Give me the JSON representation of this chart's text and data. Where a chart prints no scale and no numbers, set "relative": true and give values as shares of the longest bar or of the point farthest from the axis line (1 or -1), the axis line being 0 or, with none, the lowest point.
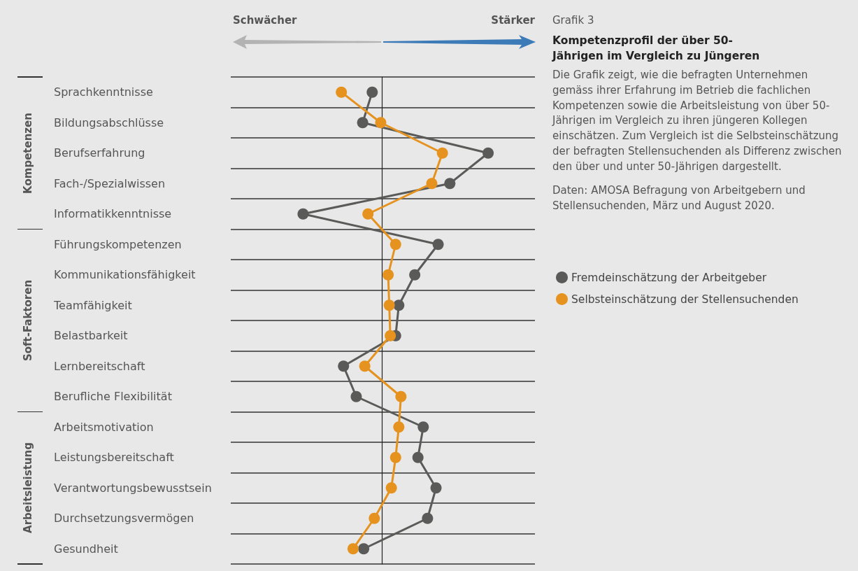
{
  "chart_data": {
    "type": "line",
    "orientation": "horizontal",
    "relative": true,
    "subtitle": "Grafik 3",
    "title": "Kompetenzprofil der über 50-Jährigen im Vergleich zu Jüngeren",
    "annotations": [
      "Schwächer",
      "Stärker",
      "Kompetenzen",
      "Soft-Faktoren",
      "Arbeitsleistung",
      "Die Grafik zeigt, wie die befragten Unternehmen gemäss ihrer Erfahrung im Betrieb die fachlichen Kompetenzen sowie die Arbeitsleistung von über 50-Jährigen im Vergleich zu ihren jüngeren Kollegen einschätzen. Zum Vergleich ist die Selbsteinschätzung der befragten Stellensuchenden als Differenz zwischen den über und unter 50-Jährigen dargestellt.",
      "Daten: AMOSA Befragung von Arbeitgebern und Stellensuchenden, März und August 2020."
    ],
    "categories": [
      "Sprachkenntnisse",
      "Bildungsabschlüsse",
      "Berufserfahrung",
      "Fach-/Spezialwissen",
      "Informatikkenntnisse",
      "Führungskompetenzen",
      "Kommunikationsfähigkeit",
      "Teamfähigkeit",
      "Belastbarkeit",
      "Lernbereitschaft",
      "Berufliche Flexibilität",
      "Arbeitsmotivation",
      "Leistungsbereitschaft",
      "Verantwortungsbewusstsein",
      "Durchsetzungsvermögen",
      "Gesundheit"
    ],
    "series": [
      {
        "name": "Fremdeinschätzung der Arbeitgeber",
        "color": "#5a5a58",
        "values": [
          -0.09,
          -0.18,
          1,
          0.64,
          -0.74,
          0.53,
          0.31,
          0.16,
          0.13,
          -0.36,
          -0.24,
          0.39,
          0.34,
          0.51,
          0.43,
          -0.17
        ]
      },
      {
        "name": "Selbsteinschätzung der Stellensuchenden",
        "color": "#e5921f",
        "values": [
          -0.38,
          -0.01,
          0.57,
          0.47,
          -0.13,
          0.13,
          0.06,
          0.07,
          0.08,
          -0.16,
          0.18,
          0.16,
          0.13,
          0.09,
          -0.07,
          -0.27
        ]
      }
    ],
    "grid": "y",
    "legend": "right",
    "marker": "circle",
    "line_style": "solid"
  }
}
